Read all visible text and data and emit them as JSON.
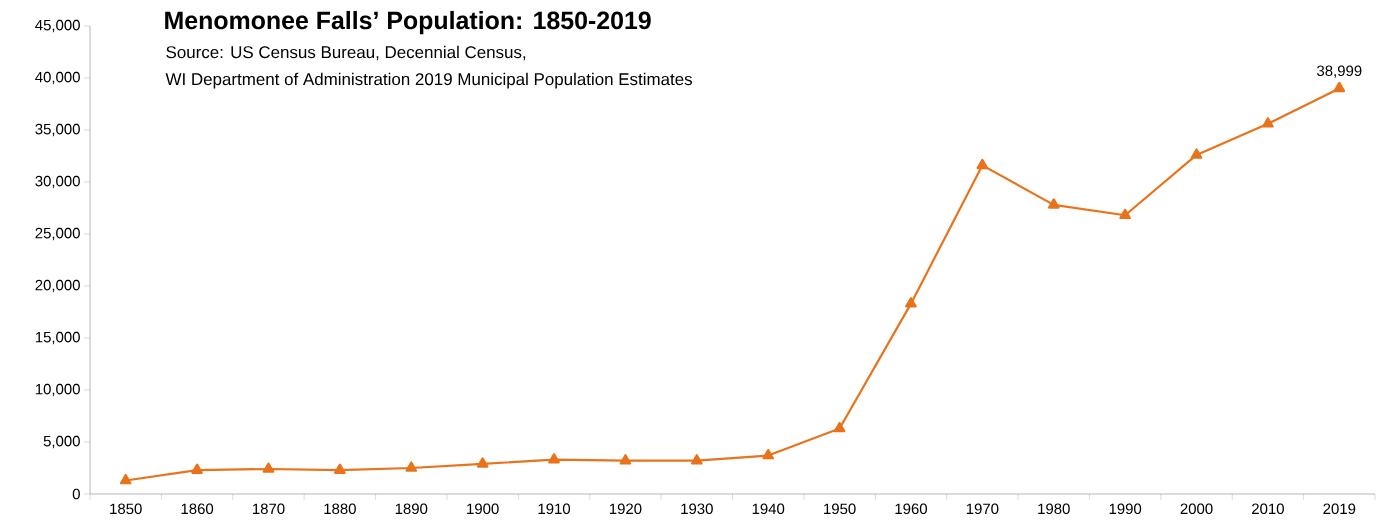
{
  "chart_data": {
    "type": "line",
    "title": "Menomonee Falls’ Population: 1850-2019",
    "annotations": [
      "Source: US Census Bureau, Decennial Census,",
      "WI Department of Administration 2019 Municipal Population Estimates"
    ],
    "categories": [
      "1850",
      "1860",
      "1870",
      "1880",
      "1890",
      "1900",
      "1910",
      "1920",
      "1930",
      "1940",
      "1950",
      "1960",
      "1970",
      "1980",
      "1990",
      "2000",
      "2010",
      "2019"
    ],
    "series": [
      {
        "color": "#e8731a",
        "values": [
          1300,
          2300,
          2400,
          2300,
          2500,
          2900,
          3300,
          3200,
          3200,
          3700,
          6300,
          18300,
          31600,
          27800,
          26800,
          32600,
          35600,
          38999
        ],
        "value_labels": [
          null,
          null,
          null,
          null,
          null,
          null,
          null,
          null,
          null,
          null,
          null,
          null,
          null,
          null,
          null,
          null,
          null,
          "38,999"
        ]
      }
    ],
    "ylim": [
      0,
      45000
    ],
    "yticks": [
      {
        "value": 0,
        "label": "0"
      },
      {
        "value": 5000,
        "label": "5,000"
      },
      {
        "value": 10000,
        "label": "10,000"
      },
      {
        "value": 15000,
        "label": "15,000"
      },
      {
        "value": 20000,
        "label": "20,000"
      },
      {
        "value": 25000,
        "label": "25,000"
      },
      {
        "value": 30000,
        "label": "30,000"
      },
      {
        "value": 35000,
        "label": "35,000"
      },
      {
        "value": 40000,
        "label": "40,000"
      },
      {
        "value": 45000,
        "label": "45,000"
      }
    ],
    "marker": "triangle",
    "line_style": "solid"
  }
}
